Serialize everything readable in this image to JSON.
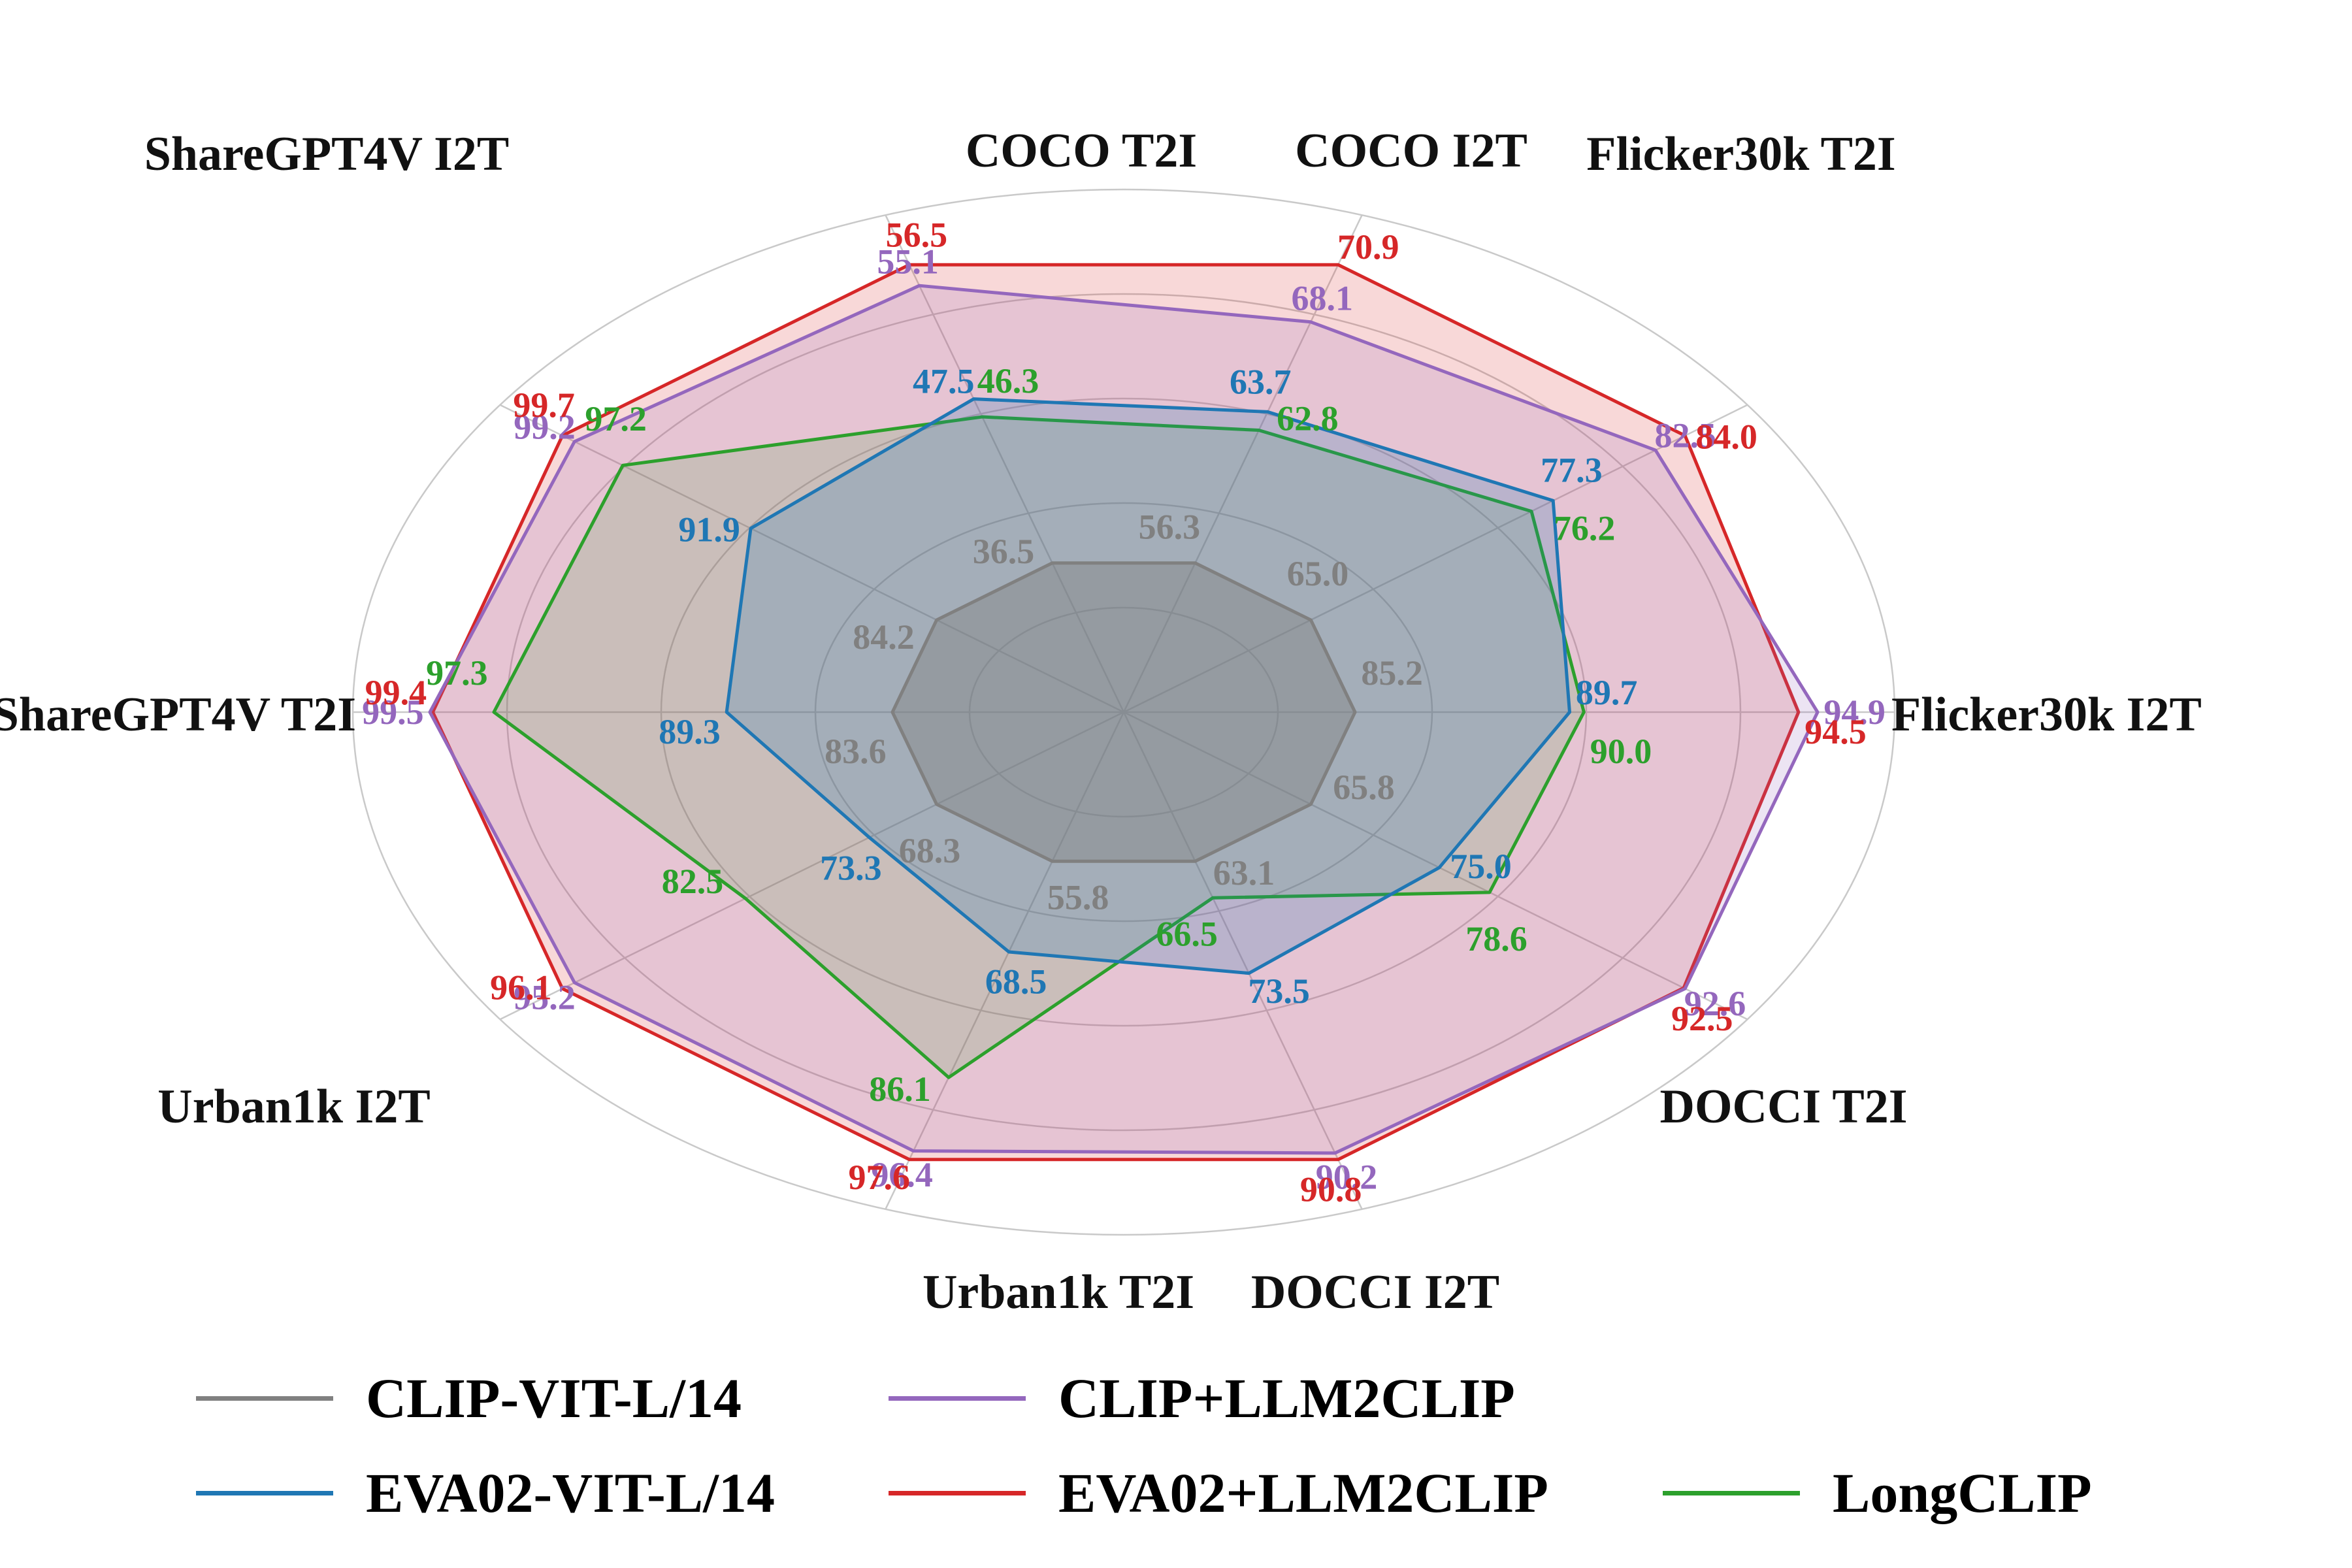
{
  "chart_data": {
    "type": "radar",
    "title": "",
    "axes": [
      "COCO T2I",
      "COCO I2T",
      "Flicker30k T2I",
      "Flicker30k I2T",
      "DOCCI T2I",
      "DOCCI I2T",
      "Urban1k T2I",
      "Urban1k I2T",
      "ShareGPT4V T2I",
      "ShareGPT4V I2T"
    ],
    "series": [
      {
        "name": "CLIP-VIT-L/14",
        "color": "#808080",
        "values": [
          36.5,
          56.3,
          65.0,
          85.2,
          65.8,
          63.1,
          55.8,
          68.3,
          83.6,
          84.2
        ]
      },
      {
        "name": "EVA02-VIT-L/14",
        "color": "#1f77b4",
        "values": [
          47.5,
          63.7,
          77.3,
          89.7,
          75.0,
          73.5,
          68.5,
          73.3,
          89.3,
          91.9
        ]
      },
      {
        "name": "CLIP+LLM2CLIP",
        "color": "#9467bd",
        "values": [
          55.1,
          68.1,
          82.5,
          94.9,
          92.6,
          90.2,
          96.4,
          95.2,
          99.5,
          99.2
        ]
      },
      {
        "name": "EVA02+LLM2CLIP",
        "color": "#d62728",
        "values": [
          56.5,
          70.9,
          84.0,
          94.5,
          92.5,
          90.8,
          97.6,
          96.1,
          99.4,
          99.7
        ]
      },
      {
        "name": "LongCLIP",
        "color": "#2ca02c",
        "values": [
          46.3,
          62.8,
          76.2,
          90.0,
          78.6,
          66.5,
          86.1,
          82.5,
          97.3,
          97.2
        ]
      }
    ],
    "legend_position": "bottom",
    "grid": true,
    "grid_rings": 5,
    "value_labels": true,
    "value_range_note": "per-axis spread; values are retrieval scores (R@1)"
  }
}
